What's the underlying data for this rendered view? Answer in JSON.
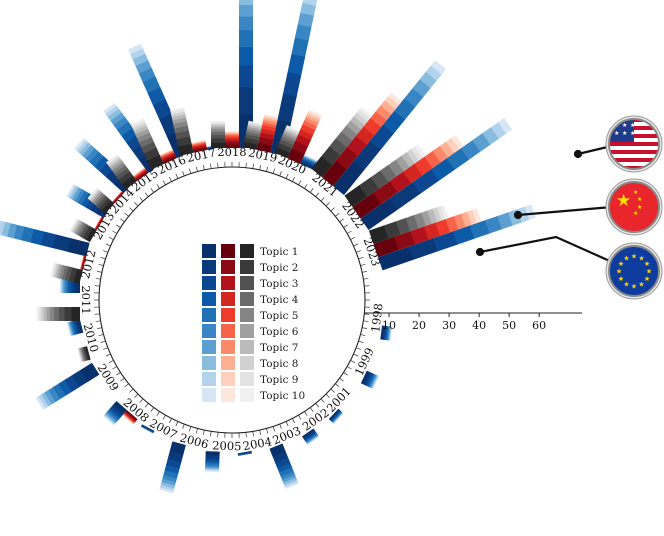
{
  "chart_data": {
    "type": "radial-stacked-bar",
    "years": [
      "1998",
      "1999",
      "2001",
      "2002",
      "2003",
      "2004",
      "2005",
      "2006",
      "2007",
      "2008",
      "2009",
      "2010",
      "2011",
      "2012",
      "2013",
      "2014",
      "2015",
      "2016",
      "2017",
      "2018",
      "2019",
      "2020",
      "2021",
      "2022",
      "2023"
    ],
    "topics": [
      "Topic 1",
      "Topic 2",
      "Topic 3",
      "Topic 4",
      "Topic 5",
      "Topic 6",
      "Topic 7",
      "Topic 8",
      "Topic 9",
      "Topic 10"
    ],
    "axis_ticks": [
      10,
      20,
      30,
      40,
      50,
      60
    ],
    "axis_max": 60,
    "series": [
      {
        "name": "us",
        "flag": "us-flag",
        "palette": "blues",
        "totals": {
          "1998": 3,
          "1999": 4,
          "2001": 2,
          "2002": 3,
          "2003": 13,
          "2004": 1,
          "2005": 6,
          "2006": 15,
          "2007": 1,
          "2008": 6,
          "2009": 20,
          "2010": 4,
          "2011": 6,
          "2012": 29,
          "2013": 13,
          "2014": 20,
          "2015": 23,
          "2016": 36,
          "2017": 1,
          "2018": 51,
          "2019": 51,
          "2020": 3,
          "2021": 49,
          "2022": 53,
          "2023": 49
        }
      },
      {
        "name": "china",
        "flag": "china-flag",
        "palette": "reds",
        "totals": {
          "2008": 2,
          "2012": 1,
          "2013": 1,
          "2014": 1,
          "2015": 2,
          "2016": 3,
          "2017": 3,
          "2018": 5,
          "2019": 11,
          "2020": 16,
          "2021": 33,
          "2022": 38,
          "2023": 33
        }
      },
      {
        "name": "eu",
        "flag": "eu-flag",
        "palette": "greys",
        "totals": {
          "2010": 3,
          "2011": 13,
          "2012": 9,
          "2013": 7,
          "2014": 7,
          "2015": 10,
          "2016": 15,
          "2017": 14,
          "2018": 8,
          "2019": 8,
          "2020": 9,
          "2021": 24,
          "2022": 27,
          "2023": 24
        }
      }
    ],
    "palettes": {
      "blues": [
        "#08306b",
        "#0a3a7a",
        "#0b4891",
        "#0d5aa8",
        "#2171b5",
        "#3a86c4",
        "#5c9fd0",
        "#89bde0",
        "#b3d2ec",
        "#d6e6f5"
      ],
      "reds": [
        "#67000d",
        "#8b0a14",
        "#b3111b",
        "#d42620",
        "#ef3b2c",
        "#f7634a",
        "#fb8a6a",
        "#fcaf93",
        "#fdd0bc",
        "#fee7dc"
      ],
      "greys": [
        "#252525",
        "#3a3a3a",
        "#525252",
        "#6b6b6b",
        "#858585",
        "#a0a0a0",
        "#bababa",
        "#d1d1d1",
        "#e3e3e3",
        "#f0f0f0"
      ]
    }
  }
}
